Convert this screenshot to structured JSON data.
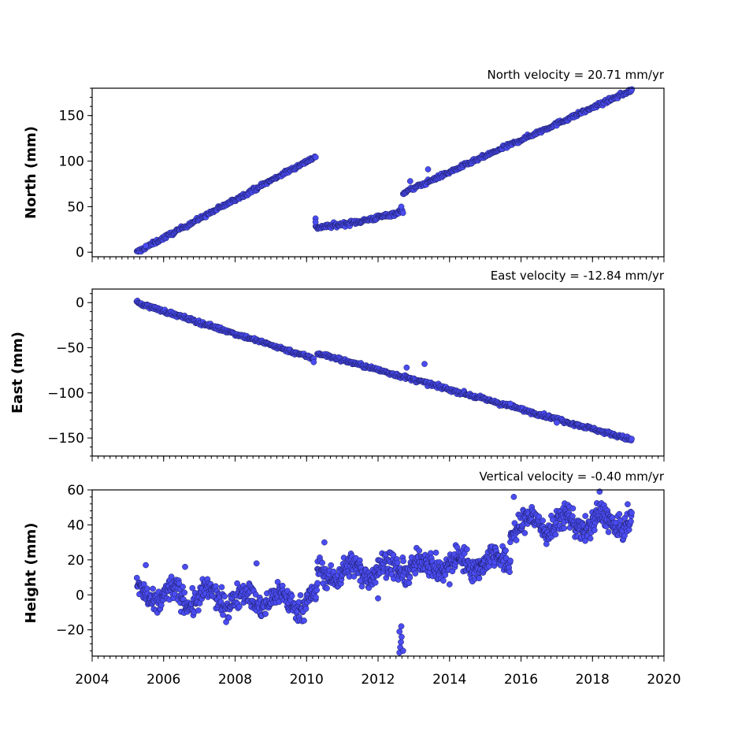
{
  "chart_data": {
    "type": "scatter",
    "point_color": "#4a4cf2",
    "edge_color": "#1a1a5c",
    "x_axis": {
      "xlim": [
        2004,
        2020
      ],
      "major_ticks": [
        2004,
        2006,
        2008,
        2010,
        2012,
        2014,
        2016,
        2018,
        2020
      ],
      "major_tick_labels": [
        "2004",
        "2006",
        "2008",
        "2010",
        "2012",
        "2014",
        "2016",
        "2018",
        "2020"
      ],
      "minor_tick_step_years": 0.1667
    },
    "panels": [
      {
        "title": "North velocity = 20.71 mm/yr",
        "ylabel": "North (mm)",
        "ylim": [
          -5,
          180
        ],
        "yticks": [
          0,
          50,
          100,
          150
        ],
        "ytick_labels": [
          "0",
          "50",
          "100",
          "150"
        ],
        "segments": [
          {
            "t0": 2005.25,
            "t1": 2010.25,
            "y0": 0,
            "y1": 105,
            "noise": 1.5,
            "n": 260
          },
          {
            "t0": 2010.25,
            "t1": 2012.7,
            "y0": 27,
            "y1": 45,
            "curve": 2.2,
            "noise": 1.8,
            "n": 140
          },
          {
            "t0": 2012.7,
            "t1": 2019.1,
            "y0": 65,
            "y1": 178,
            "noise": 1.5,
            "n": 330
          }
        ],
        "extra_points": [
          [
            2010.25,
            37
          ],
          [
            2010.25,
            33
          ],
          [
            2012.65,
            50
          ],
          [
            2012.9,
            78
          ],
          [
            2013.4,
            91
          ],
          [
            2005.5,
            7
          ]
        ]
      },
      {
        "title": "East velocity = -12.84 mm/yr",
        "ylabel": "East (mm)",
        "ylim": [
          -170,
          15
        ],
        "yticks": [
          0,
          -50,
          -100,
          -150
        ],
        "ytick_labels": [
          "0",
          "−50",
          "−100",
          "−150"
        ],
        "segments": [
          {
            "t0": 2005.25,
            "t1": 2010.2,
            "y0": 0,
            "y1": -62,
            "noise": 1.5,
            "n": 260
          },
          {
            "t0": 2010.3,
            "t1": 2019.1,
            "y0": -56,
            "y1": -152,
            "noise": 1.5,
            "n": 460
          }
        ],
        "extra_points": [
          [
            2010.2,
            -66
          ],
          [
            2013.3,
            -68
          ],
          [
            2012.8,
            -72
          ],
          [
            2017.0,
            -133
          ],
          [
            2015.7,
            -112
          ]
        ]
      },
      {
        "title": "Vertical velocity = -0.40 mm/yr",
        "ylabel": "Height (mm)",
        "ylim": [
          -35,
          60
        ],
        "yticks": [
          -20,
          0,
          20,
          40,
          60
        ],
        "ytick_labels": [
          "−20",
          "0",
          "20",
          "40",
          "60"
        ],
        "segments": [
          {
            "t0": 2005.25,
            "t1": 2010.3,
            "y0": 0,
            "y1": -4,
            "wave": 5,
            "noise": 5,
            "n": 420
          },
          {
            "t0": 2010.3,
            "t1": 2015.7,
            "y0": 12,
            "y1": 20,
            "wave": 4,
            "noise": 5,
            "n": 460
          },
          {
            "t0": 2015.7,
            "t1": 2019.1,
            "y0": 40,
            "y1": 42,
            "wave": 5,
            "noise": 5,
            "n": 300
          }
        ],
        "extra_points": [
          [
            2012.6,
            -33
          ],
          [
            2012.62,
            -30
          ],
          [
            2012.64,
            -27
          ],
          [
            2012.66,
            -24
          ],
          [
            2012.6,
            -21
          ],
          [
            2012.65,
            -18
          ],
          [
            2012.7,
            -32
          ],
          [
            2015.8,
            56
          ],
          [
            2018.2,
            59
          ],
          [
            2005.5,
            17
          ],
          [
            2006.6,
            16
          ],
          [
            2008.6,
            18
          ],
          [
            2010.5,
            30
          ],
          [
            2011.5,
            8
          ],
          [
            2012.0,
            -2
          ],
          [
            2014.0,
            6
          ]
        ]
      }
    ]
  }
}
